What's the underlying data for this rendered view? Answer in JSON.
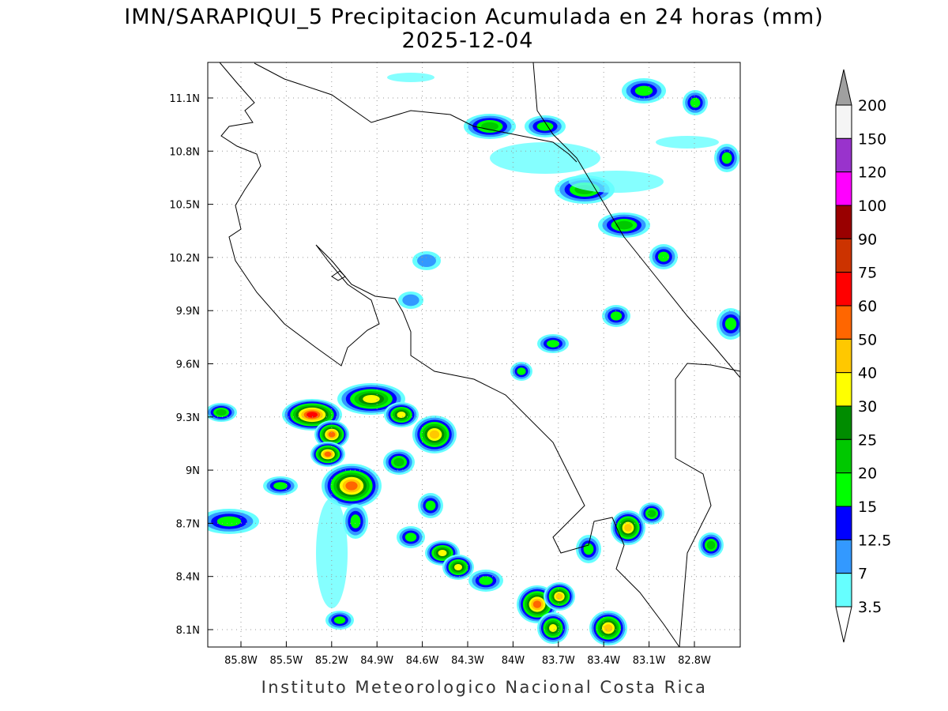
{
  "header": {
    "title": "IMN/SARAPIQUI_5 Precipitacion Acumulada en 24 horas (mm)",
    "date": "2025-12-04"
  },
  "map": {
    "lat_labels": [
      "11.1N",
      "10.8N",
      "10.5N",
      "10.2N",
      "9.9N",
      "9.6N",
      "9.3N",
      "9N",
      "8.7N",
      "8.4N",
      "8.1N"
    ],
    "lon_labels": [
      "85.8W",
      "85.5W",
      "85.2W",
      "84.9W",
      "84.6W",
      "84.3W",
      "84W",
      "83.7W",
      "83.4W",
      "83.1W",
      "82.8W"
    ]
  },
  "legend": {
    "labels": [
      "200",
      "150",
      "120",
      "100",
      "90",
      "75",
      "60",
      "50",
      "40",
      "30",
      "25",
      "20",
      "15",
      "12.5",
      "7",
      "3.5"
    ],
    "colors": [
      "#f5f5f5",
      "#9933cc",
      "#ff00ff",
      "#990000",
      "#cc3300",
      "#ff0000",
      "#ff6600",
      "#ffc800",
      "#ffff00",
      "#008c00",
      "#00c800",
      "#00ff00",
      "#0000ff",
      "#3399ff",
      "#66ffff"
    ],
    "over_color": "#a0a0a0",
    "under_color": "#ffffff"
  },
  "footer": "Instituto Meteorologico Nacional Costa Rica"
}
